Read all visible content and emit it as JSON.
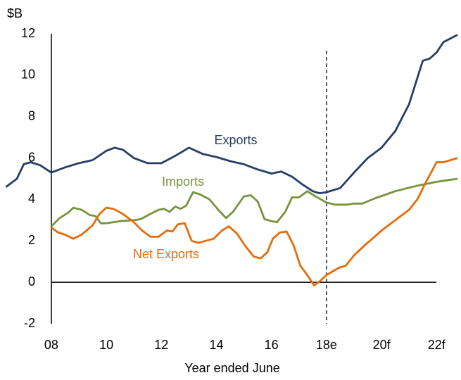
{
  "chart_data": {
    "type": "line",
    "y_unit_label": "$B",
    "x_label": "Year ended June",
    "xlim": [
      2006.34,
      2022.76
    ],
    "xticks": [
      {
        "value": 2008,
        "label": "08"
      },
      {
        "value": 2010,
        "label": "10"
      },
      {
        "value": 2012,
        "label": "12"
      },
      {
        "value": 2014,
        "label": "14"
      },
      {
        "value": 2016,
        "label": "16"
      },
      {
        "value": 2018,
        "label": "18e"
      },
      {
        "value": 2020,
        "label": "20f"
      },
      {
        "value": 2022,
        "label": "22f"
      }
    ],
    "ylim": [
      -2,
      12
    ],
    "yticks": [
      -2,
      0,
      2,
      4,
      6,
      8,
      10,
      12
    ],
    "forecast_line": 2018,
    "series": [
      {
        "name": "Exports",
        "color": "#243f66",
        "x": [
          2006.35,
          2006.75,
          2007.0,
          2007.25,
          2007.6,
          2008,
          2008.5,
          2009,
          2009.5,
          2010,
          2010.3,
          2010.6,
          2011,
          2011.5,
          2012,
          2012.5,
          2013,
          2013.5,
          2014,
          2014.5,
          2015,
          2015.5,
          2016,
          2016.35,
          2016.75,
          2017.1,
          2017.5,
          2017.75,
          2018,
          2018.5,
          2019,
          2019.5,
          2020,
          2020.5,
          2021,
          2021.5,
          2021.75,
          2022,
          2022.25,
          2022.76
        ],
        "values": [
          4.6,
          5.0,
          5.7,
          5.8,
          5.65,
          5.3,
          5.55,
          5.75,
          5.9,
          6.35,
          6.5,
          6.4,
          6.0,
          5.75,
          5.75,
          6.1,
          6.5,
          6.2,
          6.05,
          5.85,
          5.7,
          5.45,
          5.25,
          5.35,
          5.1,
          4.75,
          4.4,
          4.3,
          4.35,
          4.55,
          5.3,
          6.0,
          6.5,
          7.3,
          8.6,
          10.7,
          10.8,
          11.1,
          11.6,
          11.95
        ]
      },
      {
        "name": "Imports",
        "color": "#77933c",
        "x": [
          2008,
          2008.3,
          2008.6,
          2008.8,
          2009.1,
          2009.4,
          2009.6,
          2009.8,
          2010,
          2010.5,
          2011,
          2011.25,
          2011.6,
          2011.9,
          2012.1,
          2012.3,
          2012.5,
          2012.7,
          2012.9,
          2013.15,
          2013.4,
          2013.75,
          2014.1,
          2014.35,
          2014.6,
          2015,
          2015.25,
          2015.5,
          2015.75,
          2016,
          2016.2,
          2016.5,
          2016.75,
          2017,
          2017.3,
          2017.6,
          2018,
          2018.3,
          2018.75,
          2019,
          2019.3,
          2019.75,
          2020.5,
          2021.25,
          2022,
          2022.76
        ],
        "values": [
          2.7,
          3.1,
          3.35,
          3.6,
          3.5,
          3.25,
          3.2,
          2.85,
          2.85,
          2.95,
          3.0,
          3.05,
          3.3,
          3.5,
          3.55,
          3.4,
          3.65,
          3.55,
          3.7,
          4.35,
          4.25,
          4.0,
          3.45,
          3.1,
          3.4,
          4.15,
          4.2,
          3.9,
          3.05,
          2.95,
          2.9,
          3.4,
          4.1,
          4.1,
          4.4,
          4.15,
          3.85,
          3.75,
          3.75,
          3.8,
          3.8,
          4.05,
          4.4,
          4.65,
          4.85,
          5.0
        ]
      },
      {
        "name": "Net Exports",
        "color": "#e46c0a",
        "x": [
          2008,
          2008.25,
          2008.5,
          2008.8,
          2009.1,
          2009.5,
          2009.75,
          2010,
          2010.25,
          2010.6,
          2011,
          2011.3,
          2011.6,
          2011.9,
          2012.2,
          2012.4,
          2012.6,
          2012.85,
          2013.1,
          2013.35,
          2013.6,
          2013.9,
          2014.2,
          2014.45,
          2014.75,
          2015.05,
          2015.35,
          2015.6,
          2015.85,
          2016.05,
          2016.3,
          2016.55,
          2016.8,
          2017.05,
          2017.3,
          2017.55,
          2017.8,
          2018,
          2018.25,
          2018.45,
          2018.7,
          2019,
          2019.4,
          2019.75,
          2020,
          2020.5,
          2021,
          2021.3,
          2021.6,
          2022,
          2022.25,
          2022.76
        ],
        "values": [
          2.65,
          2.4,
          2.3,
          2.1,
          2.3,
          2.75,
          3.3,
          3.6,
          3.55,
          3.3,
          2.9,
          2.5,
          2.2,
          2.2,
          2.5,
          2.45,
          2.8,
          2.85,
          2.0,
          1.9,
          2.0,
          2.1,
          2.5,
          2.7,
          2.35,
          1.75,
          1.25,
          1.15,
          1.45,
          2.1,
          2.4,
          2.45,
          1.8,
          0.8,
          0.35,
          -0.15,
          0.1,
          0.35,
          0.55,
          0.7,
          0.8,
          1.3,
          1.8,
          2.2,
          2.5,
          3.0,
          3.5,
          4.0,
          4.8,
          5.8,
          5.8,
          6.0
        ]
      }
    ]
  }
}
